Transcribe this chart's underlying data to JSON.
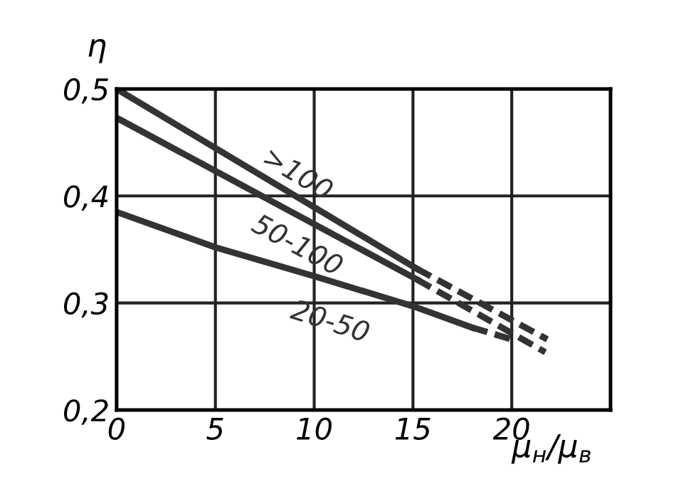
{
  "chart_data": {
    "type": "line",
    "xlabel": "μ$_{н}$/μ$_{в}$",
    "ylabel": "η",
    "xlim": [
      0,
      25
    ],
    "xticks": [
      0,
      5,
      10,
      15,
      20
    ],
    "ylim": [
      0.2,
      0.5
    ],
    "yticks": [
      {
        "value": 0.2,
        "label": "0,2"
      },
      {
        "value": 0.3,
        "label": "0,3"
      },
      {
        "value": 0.4,
        "label": "0,4"
      },
      {
        "value": 0.5,
        "label": "0,5"
      }
    ],
    "grid": true,
    "marker": "none",
    "series": [
      {
        "name": ">100",
        "color": "#333333",
        "line_style": "solid",
        "x": [
          0,
          15.2
        ],
        "values": [
          0.5,
          0.332
        ]
      },
      {
        "color": "#333333",
        "line_style": "dashed",
        "x": [
          15.2,
          21.8
        ],
        "values": [
          0.332,
          0.266
        ]
      },
      {
        "name": "50-100",
        "color": "#333333",
        "line_style": "solid",
        "x": [
          0,
          15.2
        ],
        "values": [
          0.473,
          0.322
        ]
      },
      {
        "color": "#333333",
        "line_style": "dashed",
        "x": [
          15.2,
          21.7
        ],
        "values": [
          0.322,
          0.254
        ]
      },
      {
        "name": "20-50",
        "color": "#333333",
        "line_style": "solid",
        "x": [
          0,
          5,
          10,
          15,
          18
        ],
        "values": [
          0.385,
          0.352,
          0.325,
          0.297,
          0.277
        ]
      },
      {
        "color": "#333333",
        "line_style": "dashed",
        "x": [
          18,
          20
        ],
        "values": [
          0.277,
          0.266
        ]
      }
    ]
  }
}
